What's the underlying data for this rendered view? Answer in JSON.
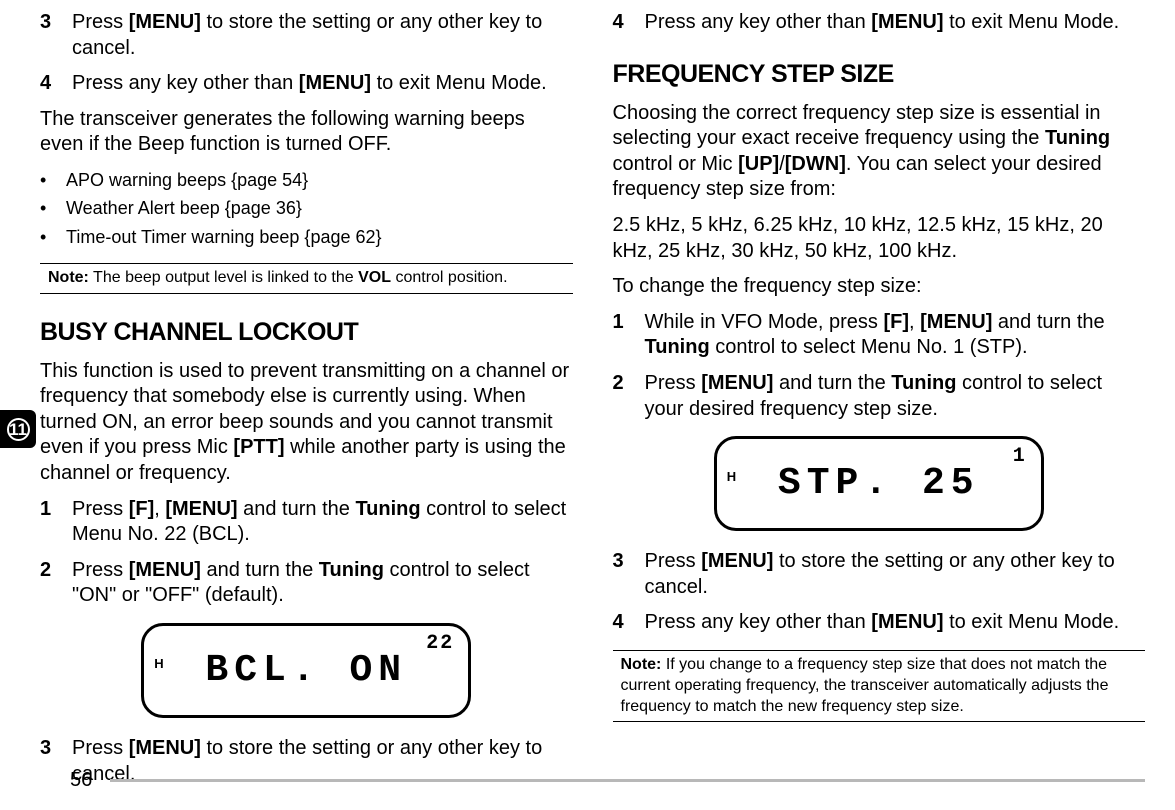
{
  "left": {
    "steps_a": [
      {
        "num": "3",
        "html": "Press <b>[MENU]</b> to store the setting or any other key to cancel."
      },
      {
        "num": "4",
        "html": "Press any key other than <b>[MENU]</b> to exit Menu Mode."
      }
    ],
    "para1": "The transceiver generates the following warning beeps even if the Beep function is turned OFF.",
    "bullets": [
      "APO warning beeps {page 54}",
      "Weather Alert beep {page 36}",
      "Time-out Timer warning beep {page 62}"
    ],
    "note1_html": "<b>Note:</b>  The beep output level is linked to the <b>VOL</b> control position.",
    "heading": "BUSY CHANNEL LOCKOUT",
    "para2_html": "This function is used to prevent transmitting on a channel or frequency that somebody else is currently using.  When turned ON, an error beep sounds and you cannot transmit even if you press Mic <b>[PTT]</b> while another party is using the channel or frequency.",
    "steps_b": [
      {
        "num": "1",
        "html": "Press <b>[F]</b>, <b>[MENU]</b> and turn the <b>Tuning</b> control to select Menu No. 22 (BCL)."
      },
      {
        "num": "2",
        "html": "Press <b>[MENU]</b> and turn the <b>Tuning</b> control to select \"ON\" or \"OFF\" (default)."
      }
    ],
    "lcd": {
      "h": "H",
      "main": "BCL. ON",
      "sup": "22"
    },
    "steps_c": [
      {
        "num": "3",
        "html": "Press <b>[MENU]</b> to store the setting or any other key to cancel."
      }
    ]
  },
  "right": {
    "steps_a": [
      {
        "num": "4",
        "html": "Press any key other than <b>[MENU]</b> to exit Menu Mode."
      }
    ],
    "heading": "FREQUENCY STEP SIZE",
    "para1_html": "Choosing the correct frequency step size is essential in selecting your exact receive frequency using the <b>Tuning</b> control or Mic <b>[UP]</b>/<b>[DWN]</b>.  You can select your desired frequency step size from:",
    "para2": "2.5 kHz, 5 kHz, 6.25 kHz, 10 kHz, 12.5 kHz, 15 kHz, 20 kHz, 25 kHz, 30 kHz, 50 kHz, 100 kHz.",
    "para3": "To change the frequency step size:",
    "steps_b": [
      {
        "num": "1",
        "html": "While in VFO Mode, press <b>[F]</b>, <b>[MENU]</b> and turn the <b>Tuning</b> control to select Menu No. 1 (STP)."
      },
      {
        "num": "2",
        "html": "Press <b>[MENU]</b> and turn the <b>Tuning</b> control to select your desired frequency step size."
      }
    ],
    "lcd": {
      "h": "H",
      "main": "STP. 25",
      "sup": "1"
    },
    "steps_c": [
      {
        "num": "3",
        "html": "Press <b>[MENU]</b> to store the setting or any other key to cancel."
      },
      {
        "num": "4",
        "html": "Press any key other than <b>[MENU]</b> to exit Menu Mode."
      }
    ],
    "note_html": "<b>Note:</b>  If you change to a frequency step size that does not match the current operating frequency, the transceiver automatically adjusts the frequency to match the new frequency step size."
  },
  "page_number": "56",
  "side_tab": "11",
  "colors": {
    "background": "#ffffff",
    "text": "#000000",
    "rule": "#b8b8b8",
    "tab_bg": "#000000",
    "tab_fg": "#ffffff"
  },
  "typography": {
    "body_pt": 20,
    "note_pt": 16,
    "heading_pt": 25,
    "bullet_pt": 18,
    "page_num_pt": 20
  }
}
